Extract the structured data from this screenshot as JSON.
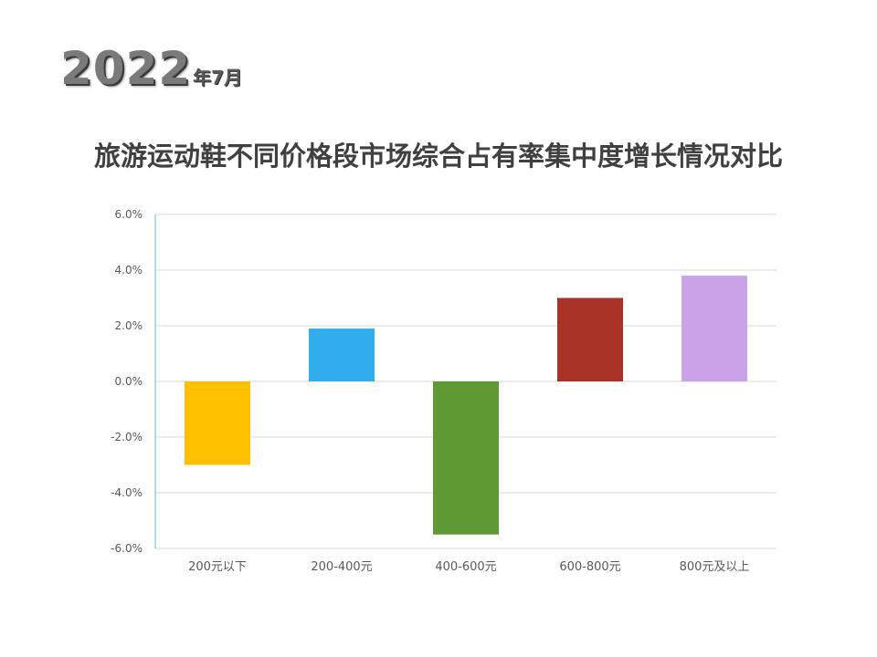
{
  "header": {
    "year": "2022",
    "month": "年7月"
  },
  "chart_data": {
    "type": "bar",
    "title": "旅游运动鞋不同价格段市场综合占有率集中度增长情况对比",
    "xlabel": "",
    "ylabel": "",
    "categories": [
      "200元以下",
      "200-400元",
      "400-600元",
      "600-800元",
      "800元及以上"
    ],
    "values": [
      -3.0,
      1.9,
      -5.5,
      3.0,
      3.8
    ],
    "colors": [
      "#FFC000",
      "#2FADEC",
      "#5F9935",
      "#A93226",
      "#C9A2E8"
    ],
    "ylim": [
      -6.0,
      6.0
    ],
    "yticks": [
      6.0,
      4.0,
      2.0,
      0.0,
      -2.0,
      -4.0,
      -6.0
    ],
    "ytick_labels": [
      "6.0%",
      "4.0%",
      "2.0%",
      "0.0%",
      "-2.0%",
      "-4.0%",
      "-6.0%"
    ],
    "grid": true,
    "legend": "none"
  }
}
